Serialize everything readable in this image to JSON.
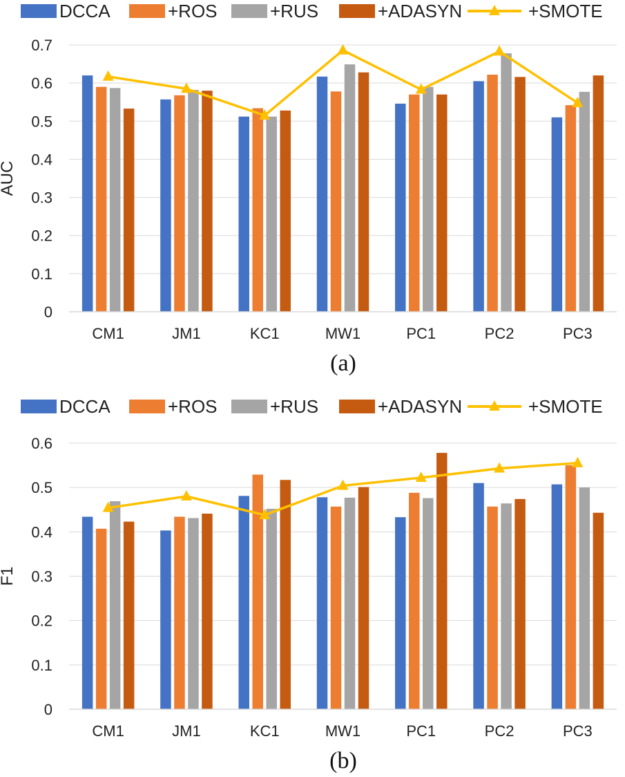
{
  "legend": {
    "items": [
      {
        "label": "DCCA",
        "kind": "bar",
        "color": "#4472c4"
      },
      {
        "label": "+ROS",
        "kind": "bar",
        "color": "#ed7d31"
      },
      {
        "label": "+RUS",
        "kind": "bar",
        "color": "#a5a5a5"
      },
      {
        "label": "+ADASYN",
        "kind": "bar",
        "color": "#c55a11"
      },
      {
        "label": "+SMOTE",
        "kind": "line",
        "color": "#ffc000"
      }
    ]
  },
  "chart_data": [
    {
      "type": "bar",
      "caption": "(a)",
      "title": "",
      "xlabel": "",
      "ylabel": "AUC",
      "ylim": [
        0,
        0.7
      ],
      "yticks": [
        "0",
        "0.1",
        "0.2",
        "0.3",
        "0.4",
        "0.5",
        "0.6",
        "0.7"
      ],
      "categories": [
        "CM1",
        "JM1",
        "KC1",
        "MW1",
        "PC1",
        "PC2",
        "PC3"
      ],
      "series": [
        {
          "name": "DCCA",
          "kind": "bar",
          "color": "#4472c4",
          "values": [
            0.62,
            0.557,
            0.512,
            0.617,
            0.546,
            0.605,
            0.51
          ]
        },
        {
          "name": "+ROS",
          "kind": "bar",
          "color": "#ed7d31",
          "values": [
            0.59,
            0.568,
            0.534,
            0.578,
            0.57,
            0.622,
            0.542
          ]
        },
        {
          "name": "+RUS",
          "kind": "bar",
          "color": "#a5a5a5",
          "values": [
            0.587,
            0.582,
            0.512,
            0.649,
            0.59,
            0.678,
            0.577
          ]
        },
        {
          "name": "+ADASYN",
          "kind": "bar",
          "color": "#c55a11",
          "values": [
            0.533,
            0.58,
            0.528,
            0.628,
            0.57,
            0.616,
            0.62
          ]
        },
        {
          "name": "+SMOTE",
          "kind": "line",
          "color": "#ffc000",
          "values": [
            0.617,
            0.585,
            0.515,
            0.686,
            0.583,
            0.683,
            0.548
          ]
        }
      ]
    },
    {
      "type": "bar",
      "caption": "(b)",
      "title": "",
      "xlabel": "",
      "ylabel": "F1",
      "ylim": [
        0,
        0.6
      ],
      "yticks": [
        "0",
        "0.1",
        "0.2",
        "0.3",
        "0.4",
        "0.5",
        "0.6"
      ],
      "categories": [
        "CM1",
        "JM1",
        "KC1",
        "MW1",
        "PC1",
        "PC2",
        "PC3"
      ],
      "series": [
        {
          "name": "DCCA",
          "kind": "bar",
          "color": "#4472c4",
          "values": [
            0.434,
            0.403,
            0.481,
            0.478,
            0.433,
            0.51,
            0.507
          ]
        },
        {
          "name": "+ROS",
          "kind": "bar",
          "color": "#ed7d31",
          "values": [
            0.407,
            0.434,
            0.529,
            0.457,
            0.488,
            0.457,
            0.55
          ]
        },
        {
          "name": "+RUS",
          "kind": "bar",
          "color": "#a5a5a5",
          "values": [
            0.469,
            0.431,
            0.452,
            0.477,
            0.476,
            0.464,
            0.5
          ]
        },
        {
          "name": "+ADASYN",
          "kind": "bar",
          "color": "#c55a11",
          "values": [
            0.423,
            0.441,
            0.517,
            0.501,
            0.578,
            0.474,
            0.443
          ]
        },
        {
          "name": "+SMOTE",
          "kind": "line",
          "color": "#ffc000",
          "values": [
            0.454,
            0.48,
            0.438,
            0.504,
            0.522,
            0.543,
            0.555
          ]
        }
      ]
    }
  ]
}
